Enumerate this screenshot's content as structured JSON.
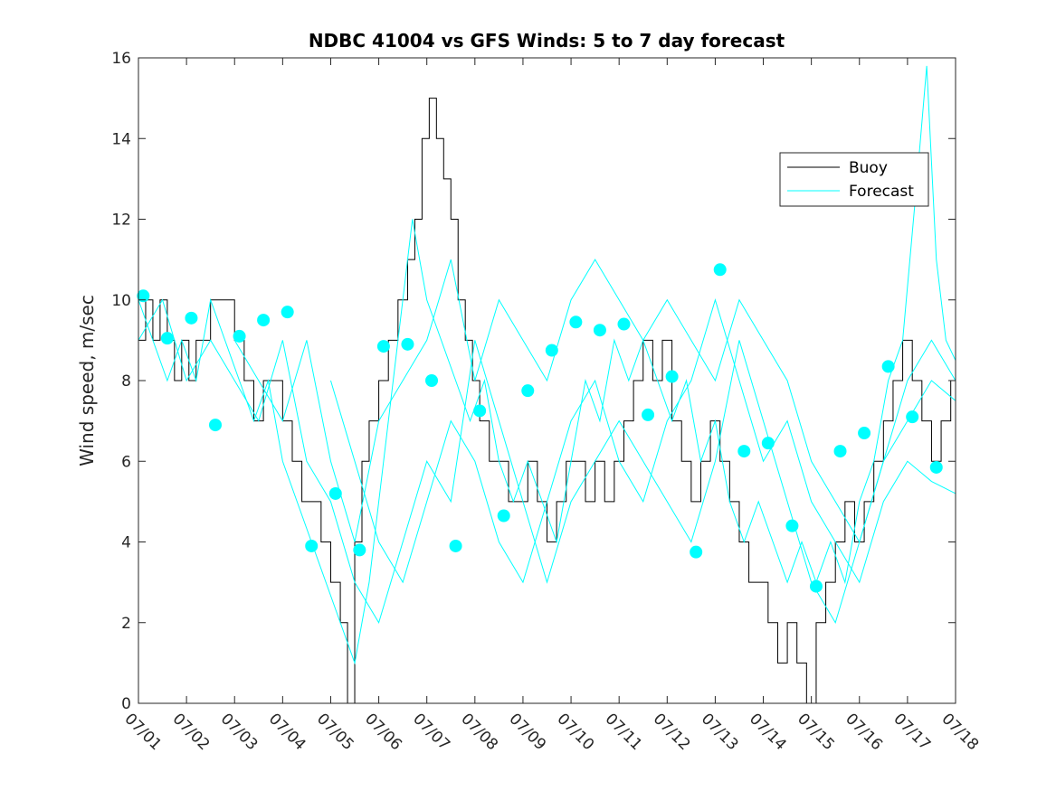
{
  "chart_data": {
    "type": "line",
    "title": "NDBC 41004 vs GFS Winds: 5 to 7 day forecast",
    "xlabel": "",
    "ylabel": "Wind speed, m/sec",
    "xlim": [
      0,
      17
    ],
    "ylim": [
      0,
      16
    ],
    "x_ticks": [
      0,
      1,
      2,
      3,
      4,
      5,
      6,
      7,
      8,
      9,
      10,
      11,
      12,
      13,
      14,
      15,
      16,
      17
    ],
    "x_tick_labels": [
      "07/01",
      "07/02",
      "07/03",
      "07/04",
      "07/05",
      "07/06",
      "07/07",
      "07/08",
      "07/09",
      "07/10",
      "07/11",
      "07/12",
      "07/13",
      "07/14",
      "07/15",
      "07/16",
      "07/17",
      "07/18"
    ],
    "y_ticks": [
      0,
      2,
      4,
      6,
      8,
      10,
      12,
      14,
      16
    ],
    "y_tick_labels": [
      "0",
      "2",
      "4",
      "6",
      "8",
      "10",
      "12",
      "14",
      "16"
    ],
    "grid": false,
    "legend": {
      "location": "top-right",
      "entries": [
        "Buoy",
        "Forecast"
      ]
    },
    "colors": {
      "buoy": "#000000",
      "forecast": "#00ffff",
      "axes": "#262626"
    },
    "series": [
      {
        "name": "Buoy",
        "style": "step",
        "points": [
          [
            0.0,
            9
          ],
          [
            0.15,
            10
          ],
          [
            0.3,
            9
          ],
          [
            0.45,
            10
          ],
          [
            0.6,
            9
          ],
          [
            0.75,
            8
          ],
          [
            0.9,
            9
          ],
          [
            1.05,
            8
          ],
          [
            1.2,
            9
          ],
          [
            1.35,
            9
          ],
          [
            1.5,
            10
          ],
          [
            1.7,
            10
          ],
          [
            1.85,
            10
          ],
          [
            2.0,
            9
          ],
          [
            2.2,
            8
          ],
          [
            2.4,
            7
          ],
          [
            2.6,
            8
          ],
          [
            2.8,
            8
          ],
          [
            3.0,
            7
          ],
          [
            3.2,
            6
          ],
          [
            3.4,
            5
          ],
          [
            3.6,
            5
          ],
          [
            3.8,
            4
          ],
          [
            4.0,
            3
          ],
          [
            4.2,
            2
          ],
          [
            4.35,
            0
          ],
          [
            4.5,
            4
          ],
          [
            4.65,
            6
          ],
          [
            4.8,
            7
          ],
          [
            5.0,
            8
          ],
          [
            5.2,
            9
          ],
          [
            5.4,
            10
          ],
          [
            5.6,
            11
          ],
          [
            5.75,
            12
          ],
          [
            5.9,
            14
          ],
          [
            6.05,
            15
          ],
          [
            6.2,
            14
          ],
          [
            6.35,
            13
          ],
          [
            6.5,
            12
          ],
          [
            6.65,
            10
          ],
          [
            6.8,
            9
          ],
          [
            6.95,
            8
          ],
          [
            7.1,
            7
          ],
          [
            7.3,
            6
          ],
          [
            7.5,
            6
          ],
          [
            7.7,
            5
          ],
          [
            7.9,
            5
          ],
          [
            8.1,
            6
          ],
          [
            8.3,
            5
          ],
          [
            8.5,
            4
          ],
          [
            8.7,
            5
          ],
          [
            8.9,
            6
          ],
          [
            9.1,
            6
          ],
          [
            9.3,
            5
          ],
          [
            9.5,
            6
          ],
          [
            9.7,
            5
          ],
          [
            9.9,
            6
          ],
          [
            10.1,
            7
          ],
          [
            10.3,
            8
          ],
          [
            10.5,
            9
          ],
          [
            10.7,
            8
          ],
          [
            10.9,
            9
          ],
          [
            11.1,
            7
          ],
          [
            11.3,
            6
          ],
          [
            11.5,
            5
          ],
          [
            11.7,
            6
          ],
          [
            11.9,
            7
          ],
          [
            12.1,
            6
          ],
          [
            12.3,
            5
          ],
          [
            12.5,
            4
          ],
          [
            12.7,
            3
          ],
          [
            12.9,
            3
          ],
          [
            13.1,
            2
          ],
          [
            13.3,
            1
          ],
          [
            13.5,
            2
          ],
          [
            13.7,
            1
          ],
          [
            13.9,
            0
          ],
          [
            14.1,
            2
          ],
          [
            14.3,
            3
          ],
          [
            14.5,
            4
          ],
          [
            14.7,
            5
          ],
          [
            14.9,
            4
          ],
          [
            15.1,
            5
          ],
          [
            15.3,
            6
          ],
          [
            15.5,
            7
          ],
          [
            15.7,
            8
          ],
          [
            15.9,
            9
          ],
          [
            16.1,
            8
          ],
          [
            16.3,
            7
          ],
          [
            16.5,
            6
          ],
          [
            16.7,
            7
          ],
          [
            16.9,
            8
          ]
        ]
      },
      {
        "name": "Forecast",
        "style": "line",
        "points": [
          [
            0.0,
            10
          ],
          [
            0.3,
            9
          ],
          [
            0.6,
            8
          ],
          [
            0.9,
            9
          ],
          [
            1.2,
            8
          ],
          [
            1.5,
            10
          ],
          [
            1.8,
            9
          ],
          [
            2.1,
            8
          ],
          [
            2.4,
            7
          ],
          [
            2.7,
            8
          ],
          [
            3.0,
            6
          ],
          [
            3.3,
            5
          ],
          [
            3.6,
            4
          ],
          [
            3.9,
            3
          ],
          [
            4.2,
            2
          ],
          [
            4.5,
            1
          ],
          [
            4.8,
            3
          ],
          [
            5.1,
            6
          ],
          [
            5.4,
            9
          ],
          [
            5.7,
            12
          ],
          [
            6.0,
            10
          ],
          [
            6.3,
            9
          ],
          [
            6.6,
            8
          ],
          [
            6.9,
            7
          ],
          [
            7.2,
            8
          ],
          [
            7.5,
            6
          ],
          [
            7.8,
            5
          ],
          [
            8.1,
            6
          ],
          [
            8.4,
            5
          ],
          [
            8.7,
            4
          ],
          [
            9.0,
            6
          ],
          [
            9.3,
            8
          ],
          [
            9.6,
            7
          ],
          [
            9.9,
            9
          ],
          [
            10.2,
            8
          ],
          [
            10.5,
            9
          ],
          [
            10.8,
            8
          ],
          [
            11.1,
            7
          ],
          [
            11.4,
            8
          ],
          [
            11.7,
            6
          ],
          [
            12.0,
            7
          ],
          [
            12.3,
            5
          ],
          [
            12.6,
            4
          ],
          [
            12.9,
            5
          ],
          [
            13.2,
            4
          ],
          [
            13.5,
            3
          ],
          [
            13.8,
            4
          ],
          [
            14.1,
            3
          ],
          [
            14.4,
            4
          ],
          [
            14.7,
            3
          ],
          [
            15.0,
            5
          ],
          [
            15.3,
            6
          ],
          [
            15.6,
            8
          ],
          [
            15.9,
            9
          ],
          [
            16.2,
            13
          ],
          [
            16.4,
            15.8
          ],
          [
            16.6,
            11
          ],
          [
            16.8,
            9
          ],
          [
            17.0,
            8.5
          ]
        ]
      },
      {
        "name": "Forecast",
        "style": "line",
        "points": [
          [
            0.0,
            9
          ],
          [
            0.5,
            10
          ],
          [
            1.0,
            8
          ],
          [
            1.5,
            9
          ],
          [
            2.0,
            8
          ],
          [
            2.5,
            7
          ],
          [
            3.0,
            9
          ],
          [
            3.5,
            6
          ],
          [
            4.0,
            5
          ],
          [
            4.5,
            3
          ],
          [
            5.0,
            2
          ],
          [
            5.5,
            4
          ],
          [
            6.0,
            6
          ],
          [
            6.5,
            5
          ],
          [
            7.0,
            9
          ],
          [
            7.5,
            7
          ],
          [
            8.0,
            5
          ],
          [
            8.5,
            3
          ],
          [
            9.0,
            5
          ],
          [
            9.5,
            6
          ],
          [
            10.0,
            7
          ],
          [
            10.5,
            6
          ],
          [
            11.0,
            5
          ],
          [
            11.5,
            4
          ],
          [
            12.0,
            6
          ],
          [
            12.5,
            9
          ],
          [
            13.0,
            7
          ],
          [
            13.5,
            5
          ],
          [
            14.0,
            3
          ],
          [
            14.5,
            2
          ],
          [
            15.0,
            4
          ],
          [
            15.5,
            6
          ],
          [
            16.0,
            7
          ],
          [
            16.5,
            8
          ],
          [
            17.0,
            7.5
          ]
        ]
      },
      {
        "name": "Forecast",
        "style": "line",
        "points": [
          [
            2.0,
            9
          ],
          [
            2.5,
            8
          ],
          [
            3.0,
            7
          ],
          [
            3.5,
            9
          ],
          [
            4.0,
            6
          ],
          [
            4.5,
            4
          ],
          [
            5.0,
            7
          ],
          [
            5.5,
            8
          ],
          [
            6.0,
            9
          ],
          [
            6.5,
            11
          ],
          [
            7.0,
            8
          ],
          [
            7.5,
            10
          ],
          [
            8.0,
            9
          ],
          [
            8.5,
            8
          ],
          [
            9.0,
            10
          ],
          [
            9.5,
            11
          ],
          [
            10.0,
            10
          ],
          [
            10.5,
            9
          ],
          [
            11.0,
            10
          ],
          [
            11.5,
            9
          ],
          [
            12.0,
            8
          ],
          [
            12.5,
            10
          ],
          [
            13.0,
            9
          ],
          [
            13.5,
            8
          ],
          [
            14.0,
            6
          ],
          [
            14.5,
            5
          ],
          [
            15.0,
            4
          ],
          [
            15.5,
            6
          ],
          [
            16.0,
            8
          ],
          [
            16.5,
            9
          ],
          [
            17.0,
            8
          ]
        ]
      },
      {
        "name": "Forecast",
        "style": "line",
        "points": [
          [
            4.0,
            8
          ],
          [
            4.5,
            6
          ],
          [
            5.0,
            4
          ],
          [
            5.5,
            3
          ],
          [
            6.0,
            5
          ],
          [
            6.5,
            7
          ],
          [
            7.0,
            6
          ],
          [
            7.5,
            4
          ],
          [
            8.0,
            3
          ],
          [
            8.5,
            5
          ],
          [
            9.0,
            7
          ],
          [
            9.5,
            8
          ],
          [
            10.0,
            6
          ],
          [
            10.5,
            5
          ],
          [
            11.0,
            7
          ],
          [
            11.5,
            8
          ],
          [
            12.0,
            10
          ],
          [
            12.5,
            8
          ],
          [
            13.0,
            6
          ],
          [
            13.5,
            7
          ],
          [
            14.0,
            5
          ],
          [
            14.5,
            4
          ],
          [
            15.0,
            3
          ],
          [
            15.5,
            5
          ],
          [
            16.0,
            6
          ],
          [
            16.5,
            5.5
          ],
          [
            17.0,
            5.2
          ]
        ]
      },
      {
        "name": "Forecast",
        "style": "markers",
        "points": [
          [
            0.1,
            10.1
          ],
          [
            0.6,
            9.05
          ],
          [
            1.1,
            9.55
          ],
          [
            1.6,
            6.9
          ],
          [
            2.1,
            9.1
          ],
          [
            2.6,
            9.5
          ],
          [
            3.1,
            9.7
          ],
          [
            3.6,
            3.9
          ],
          [
            4.1,
            5.2
          ],
          [
            4.6,
            3.8
          ],
          [
            5.1,
            8.85
          ],
          [
            5.6,
            8.9
          ],
          [
            6.1,
            8.0
          ],
          [
            6.6,
            3.9
          ],
          [
            7.1,
            7.25
          ],
          [
            7.6,
            4.65
          ],
          [
            8.1,
            7.75
          ],
          [
            8.6,
            8.75
          ],
          [
            9.1,
            9.45
          ],
          [
            9.6,
            9.25
          ],
          [
            10.1,
            9.4
          ],
          [
            10.6,
            7.15
          ],
          [
            11.1,
            8.1
          ],
          [
            11.6,
            3.75
          ],
          [
            12.1,
            10.75
          ],
          [
            12.6,
            6.25
          ],
          [
            13.1,
            6.45
          ],
          [
            13.6,
            4.4
          ],
          [
            14.1,
            2.9
          ],
          [
            14.6,
            6.25
          ],
          [
            15.1,
            6.7
          ],
          [
            15.6,
            8.35
          ],
          [
            16.1,
            7.1
          ],
          [
            16.6,
            5.85
          ]
        ]
      }
    ]
  }
}
